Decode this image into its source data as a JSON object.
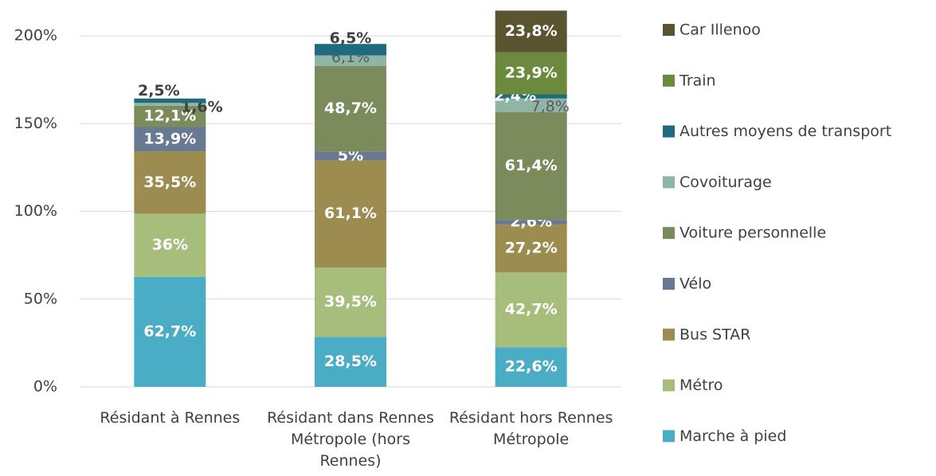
{
  "chart_data": {
    "type": "stacked_bar",
    "categories": [
      "Résidant à Rennes",
      "Résidant dans Rennes Métropole (hors Rennes)",
      "Résidant hors Rennes Métropole"
    ],
    "series": [
      {
        "name": "Marche à pied",
        "color": "#4bacc6",
        "values": [
          62.7,
          28.5,
          22.6
        ],
        "value_labels": [
          "62,7%",
          "28,5%",
          "22,6%"
        ]
      },
      {
        "name": "Métro",
        "color": "#a6bd7c",
        "values": [
          36,
          39.5,
          42.7
        ],
        "value_labels": [
          "36%",
          "39,5%",
          "42,7%"
        ]
      },
      {
        "name": "Bus STAR",
        "color": "#9d8c50",
        "values": [
          35.5,
          61.1,
          27.2
        ],
        "value_labels": [
          "35,5%",
          "61,1%",
          "27,2%"
        ]
      },
      {
        "name": "Vélo",
        "color": "#687a92",
        "values": [
          13.9,
          5,
          2.6
        ],
        "value_labels": [
          "13,9%",
          "5%",
          "2,6%"
        ]
      },
      {
        "name": "Voiture personnelle",
        "color": "#7c8b5c",
        "values": [
          12.1,
          48.7,
          61.4
        ],
        "value_labels": [
          "12,1%",
          "48,7%",
          "61,4%"
        ]
      },
      {
        "name": "Covoiturage",
        "color": "#8fb5a7",
        "values": [
          1.6,
          6.1,
          7.8
        ],
        "value_labels": [
          "1,6%",
          "6,1%",
          "7,8%"
        ]
      },
      {
        "name": "Autres moyens de transport",
        "color": "#1f6b7b",
        "values": [
          2.5,
          6.5,
          2.4
        ],
        "value_labels": [
          "2,5%",
          "6,5%",
          "2,4%"
        ]
      },
      {
        "name": "Train",
        "color": "#6b8a3e",
        "values": [
          null,
          null,
          23.9
        ],
        "value_labels": [
          null,
          null,
          "23,9%"
        ]
      },
      {
        "name": "Car Illenoo",
        "color": "#5b5431",
        "values": [
          null,
          null,
          23.8
        ],
        "value_labels": [
          null,
          null,
          "23,8%"
        ]
      }
    ],
    "ylim": [
      0,
      215
    ],
    "yticks": [
      {
        "value": 0,
        "label": "0%"
      },
      {
        "value": 50,
        "label": "50%"
      },
      {
        "value": 100,
        "label": "100%"
      },
      {
        "value": 150,
        "label": "150%"
      },
      {
        "value": 200,
        "label": "200%"
      }
    ],
    "grid": true,
    "legend": "right"
  }
}
